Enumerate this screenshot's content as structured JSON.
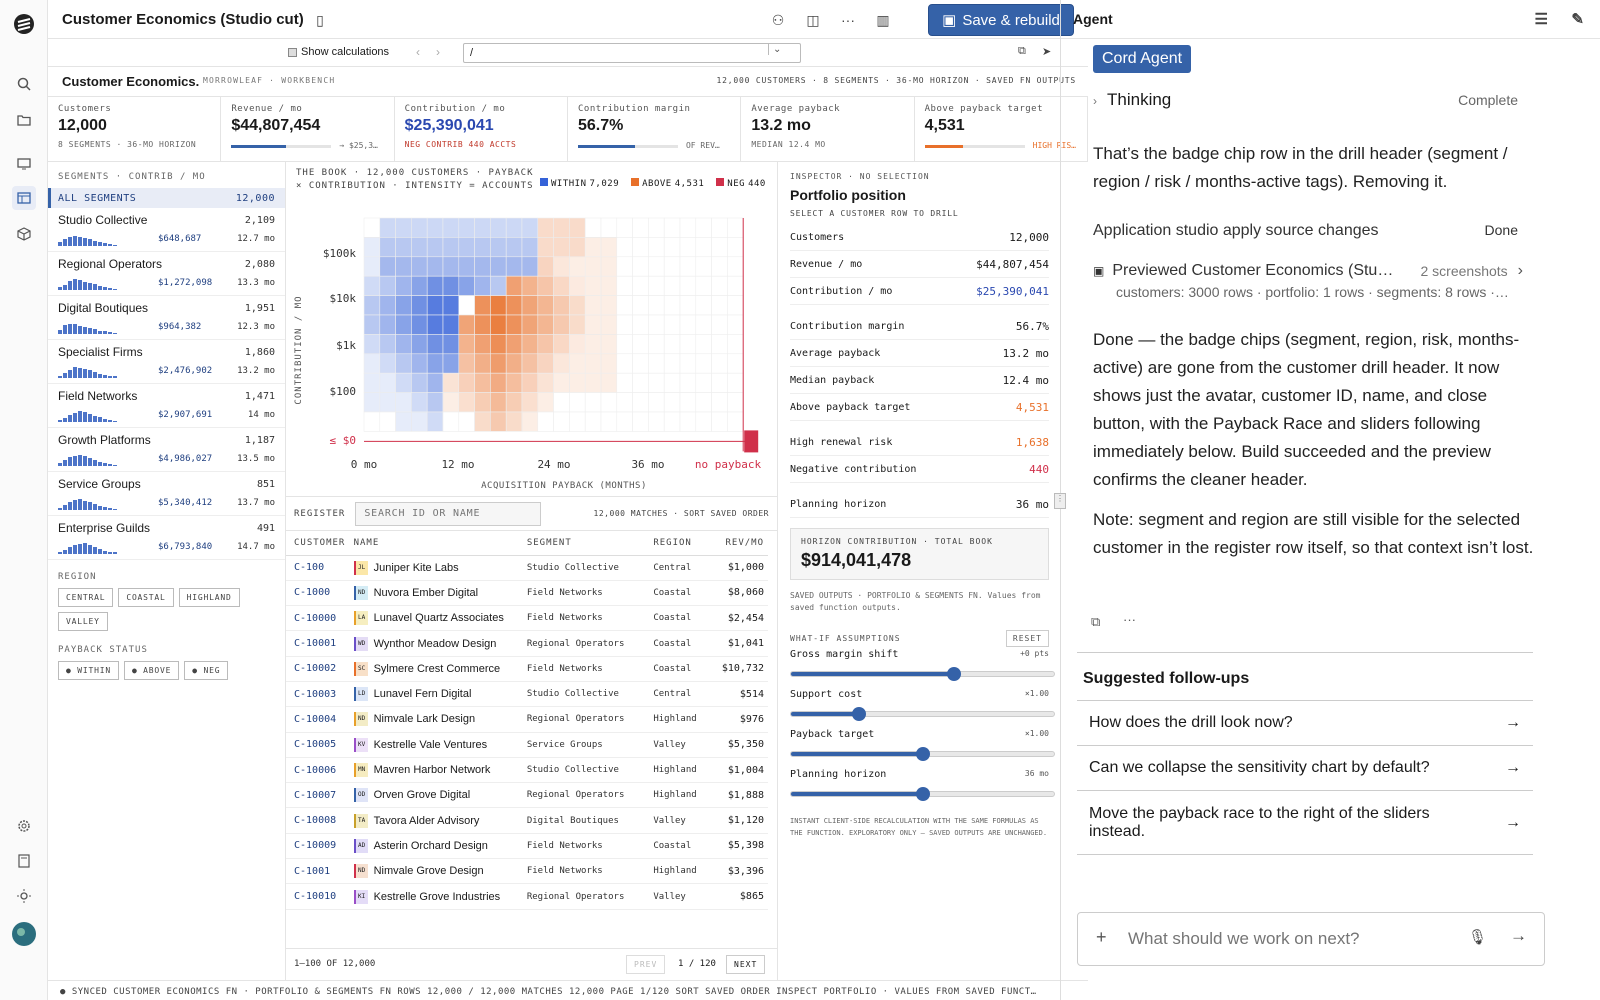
{
  "app": {
    "title": "Customer Economics (Studio cut)",
    "save_label": "Save & rebuild",
    "show_calc": "Show calculations",
    "url": "/"
  },
  "wb": {
    "title": "Customer Economics.",
    "sub": "MORROWLEAF · WORKBENCH",
    "meta": "12,000 CUSTOMERS · 8 SEGMENTS · 36-MO HORIZON · SAVED FN OUTPUTS"
  },
  "kpis": [
    {
      "label": "Customers",
      "value": "12,000",
      "sub": "8 SEGMENTS · 36-MO HORIZON",
      "color": "#1a1a1a"
    },
    {
      "label": "Revenue / mo",
      "value": "$44,807,454",
      "sub": "",
      "aside": "→ $25,3…",
      "color": "#1a1a1a",
      "fill": 0.55,
      "fillc": "#3562a8"
    },
    {
      "label": "Contribution / mo",
      "value": "$25,390,041",
      "sub": "NEG CONTRIB 440 ACCTS",
      "color": "#2a48b0",
      "subc": "#c0392b"
    },
    {
      "label": "Contribution margin",
      "value": "56.7%",
      "sub": "",
      "aside": "OF REV…",
      "color": "#1a1a1a",
      "fill": 0.57,
      "fillc": "#3562a8"
    },
    {
      "label": "Average payback",
      "value": "13.2 mo",
      "sub": "MEDIAN 12.4 MO",
      "color": "#1a1a1a"
    },
    {
      "label": "Above payback target",
      "value": "4,531",
      "sub": "",
      "aside": "HIGH RIS…",
      "asidec": "#e8702a",
      "color": "#1a1a1a",
      "fill": 0.38,
      "fillc": "#e8702a"
    }
  ],
  "segments": {
    "header": "SEGMENTS · CONTRIB / MO",
    "all_label": "ALL SEGMENTS",
    "all_count": "12,000",
    "items": [
      {
        "name": "Studio Collective",
        "count": "2,109",
        "value": "$648,687",
        "months": "12.7 mo"
      },
      {
        "name": "Regional Operators",
        "count": "2,080",
        "value": "$1,272,098",
        "months": "13.3 mo"
      },
      {
        "name": "Digital Boutiques",
        "count": "1,951",
        "value": "$964,382",
        "months": "12.3 mo"
      },
      {
        "name": "Specialist Firms",
        "count": "1,860",
        "value": "$2,476,902",
        "months": "13.2 mo"
      },
      {
        "name": "Field Networks",
        "count": "1,471",
        "value": "$2,907,691",
        "months": "14 mo"
      },
      {
        "name": "Growth Platforms",
        "count": "1,187",
        "value": "$4,986,027",
        "months": "13.5 mo"
      },
      {
        "name": "Service Groups",
        "count": "851",
        "value": "$5,340,412",
        "months": "13.7 mo"
      },
      {
        "name": "Enterprise Guilds",
        "count": "491",
        "value": "$6,793,840",
        "months": "14.7 mo"
      }
    ],
    "region_label": "REGION",
    "regions": [
      "CENTRAL",
      "COASTAL",
      "HIGHLAND",
      "VALLEY"
    ],
    "payback_label": "PAYBACK STATUS",
    "payback": [
      "● WITHIN",
      "● ABOVE",
      "● NEG"
    ]
  },
  "chart_data": {
    "type": "heatmap",
    "title": "THE BOOK · 12,000 CUSTOMERS · PAYBACK × CONTRIBUTION · INTENSITY = ACCOUNTS",
    "xlabel": "ACQUISITION PAYBACK (MONTHS)",
    "ylabel": "CONTRIBUTION / MO",
    "x_ticks": [
      "0 mo",
      "12 mo",
      "24 mo",
      "36 mo",
      "no payback"
    ],
    "y_ticks": [
      "$100k",
      "$10k",
      "$1k",
      "$100",
      "≤ $0"
    ],
    "series": [
      {
        "name": "WITHIN",
        "count": "7,029",
        "color": "#3562d8"
      },
      {
        "name": "ABOVE",
        "count": "4,531",
        "color": "#e8702a"
      },
      {
        "name": "NEG",
        "count": "440",
        "color": "#d0304a"
      }
    ]
  },
  "register": {
    "label": "REGISTER",
    "search_placeholder": "SEARCH ID OR NAME",
    "meta": "12,000 MATCHES · SORT SAVED ORDER",
    "cols": [
      "CUSTOMER",
      "NAME",
      "SEGMENT",
      "REGION",
      "REV/MO"
    ],
    "rows": [
      [
        "C-100",
        "JL",
        "Juniper Kite Labs",
        "Studio Collective",
        "Central",
        "$1,000"
      ],
      [
        "C-1000",
        "ND",
        "Nuvora Ember Digital",
        "Field Networks",
        "Coastal",
        "$8,060"
      ],
      [
        "C-10000",
        "LA",
        "Lunavel Quartz Associates",
        "Field Networks",
        "Coastal",
        "$2,454"
      ],
      [
        "C-10001",
        "WD",
        "Wynthor Meadow Design",
        "Regional Operators",
        "Coastal",
        "$1,041"
      ],
      [
        "C-10002",
        "SC",
        "Sylmere Crest Commerce",
        "Field Networks",
        "Coastal",
        "$10,732"
      ],
      [
        "C-10003",
        "LD",
        "Lunavel Fern Digital",
        "Studio Collective",
        "Central",
        "$514"
      ],
      [
        "C-10004",
        "ND",
        "Nimvale Lark Design",
        "Regional Operators",
        "Highland",
        "$976"
      ],
      [
        "C-10005",
        "KV",
        "Kestrelle Vale Ventures",
        "Service Groups",
        "Valley",
        "$5,350"
      ],
      [
        "C-10006",
        "MN",
        "Mavren Harbor Network",
        "Studio Collective",
        "Highland",
        "$1,004"
      ],
      [
        "C-10007",
        "OD",
        "Orven Grove Digital",
        "Regional Operators",
        "Highland",
        "$1,888"
      ],
      [
        "C-10008",
        "TA",
        "Tavora Alder Advisory",
        "Digital Boutiques",
        "Valley",
        "$1,120"
      ],
      [
        "C-10009",
        "AD",
        "Asterin Orchard Design",
        "Field Networks",
        "Coastal",
        "$5,398"
      ],
      [
        "C-1001",
        "ND",
        "Nimvale Grove Design",
        "Field Networks",
        "Highland",
        "$3,396"
      ],
      [
        "C-10010",
        "KI",
        "Kestrelle Grove Industries",
        "Regional Operators",
        "Valley",
        "$865"
      ]
    ],
    "range": "1–100 OF 12,000",
    "prev": "PREV",
    "page": "1 / 120",
    "next": "NEXT"
  },
  "inspector": {
    "header": "INSPECTOR · NO SELECTION",
    "title": "Portfolio position",
    "hint": "SELECT A CUSTOMER ROW TO DRILL",
    "rows": [
      {
        "l": "Customers",
        "v": "12,000",
        "c": "#1a1a1a"
      },
      {
        "l": "Revenue / mo",
        "v": "$44,807,454",
        "c": "#1a1a1a"
      },
      {
        "l": "Contribution / mo",
        "v": "$25,390,041",
        "c": "#2a48b0"
      },
      {
        "l": "Contribution margin",
        "v": "56.7%",
        "c": "#1a1a1a"
      },
      {
        "l": "Average payback",
        "v": "13.2 mo",
        "c": "#1a1a1a"
      },
      {
        "l": "Median payback",
        "v": "12.4 mo",
        "c": "#1a1a1a"
      },
      {
        "l": "Above payback target",
        "v": "4,531",
        "c": "#e8702a"
      },
      {
        "l": "High renewal risk",
        "v": "1,638",
        "c": "#e8702a"
      },
      {
        "l": "Negative contribution",
        "v": "440",
        "c": "#d0304a"
      },
      {
        "l": "Planning horizon",
        "v": "36 mo",
        "c": "#1a1a1a"
      }
    ],
    "box_label": "HORIZON CONTRIBUTION · TOTAL BOOK",
    "box_value": "$914,041,478",
    "note": "SAVED OUTPUTS · PORTFOLIO & SEGMENTS FN. Values from saved function outputs.",
    "whatif": "WHAT-IF ASSUMPTIONS",
    "reset": "RESET",
    "sliders": [
      {
        "l": "Gross margin shift",
        "v": "+0 pts",
        "pct": 0.62
      },
      {
        "l": "Support cost",
        "v": "×1.00",
        "pct": 0.26
      },
      {
        "l": "Payback target",
        "v": "×1.00",
        "pct": 0.5
      },
      {
        "l": "Planning horizon",
        "v": "36 mo",
        "pct": 0.5
      }
    ],
    "foot": "INSTANT CLIENT-SIDE RECALCULATION WITH THE SAME FORMULAS AS THE FUNCTION. EXPLORATORY ONLY — SAVED OUTPUTS ARE UNCHANGED."
  },
  "status": "● SYNCED   CUSTOMER ECONOMICS FN · PORTFOLIO & SEGMENTS FN   ROWS 12,000 / 12,000   MATCHES 12,000   PAGE 1/120   SORT SAVED ORDER   INSPECT PORTFOLIO · VALUES FROM SAVED FUNCT…",
  "agent": {
    "title": "Agent",
    "badge": "Cord Agent",
    "thinking": "Thinking",
    "complete": "Complete",
    "msg1": "That’s the badge chip row in the drill header (segment / region / risk / months-active tags). Removing it.",
    "step": "Application studio apply source changes",
    "done": "Done",
    "preview": "Previewed Customer Economics (Stu…",
    "shots": "2 screenshots",
    "preview_sub": "customers: 3000 rows · portfolio: 1 rows · segments: 8 rows ·…",
    "msg2": "Done — the badge chips (segment, region, risk, months-active) are gone from the customer drill header. It now shows just the avatar, customer ID, name, and close button, with the Payback Race and sliders following immediately below. Build succeeded and the preview confirms the cleaner header.",
    "msg3": "Note: segment and region are still visible for the selected customer in the register row itself, so that context isn’t lost.",
    "followups_label": "Suggested follow-ups",
    "followups": [
      "How does the drill look now?",
      "Can we collapse the sensitivity chart by default?",
      "Move the payback race to the right of the sliders instead."
    ],
    "input_placeholder": "What should we work on next?"
  }
}
